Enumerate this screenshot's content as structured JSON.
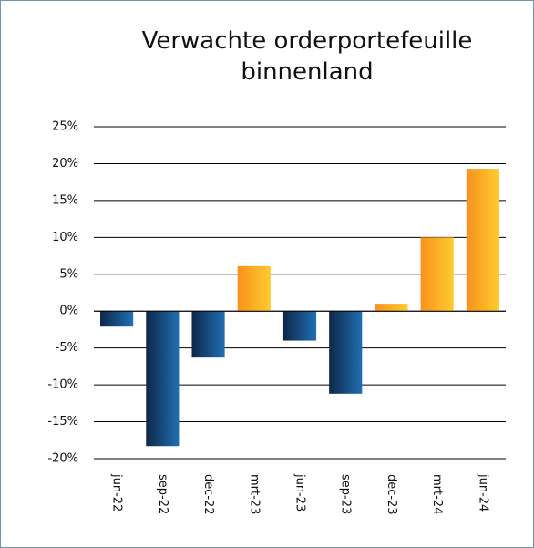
{
  "chart_data": {
    "type": "bar",
    "title": "Verwachte orderportefeuille binnenland",
    "categories": [
      "jun-22",
      "sep-22",
      "dec-22",
      "mrt-23",
      "jun-23",
      "sep-23",
      "dec-23",
      "mrt-24",
      "jun-24"
    ],
    "values": [
      -2.1,
      -18.3,
      -6.3,
      6.1,
      -4.0,
      -11.2,
      1.0,
      10.0,
      19.3
    ],
    "negative_colors": [
      "#0f2748",
      "#1f6fb2"
    ],
    "positive_colors": [
      "#f7921e",
      "#ffcb2e"
    ],
    "ylim": [
      -20,
      25
    ],
    "yticks": [
      {
        "value": -20,
        "label": "-20%"
      },
      {
        "value": -15,
        "label": "-15%"
      },
      {
        "value": -10,
        "label": "-10%"
      },
      {
        "value": -5,
        "label": "-5%"
      },
      {
        "value": 0,
        "label": "0%"
      },
      {
        "value": 5,
        "label": "5%"
      },
      {
        "value": 10,
        "label": "10%"
      },
      {
        "value": 15,
        "label": "15%"
      },
      {
        "value": 20,
        "label": "20%"
      },
      {
        "value": 25,
        "label": "25%"
      }
    ],
    "grid": true
  }
}
